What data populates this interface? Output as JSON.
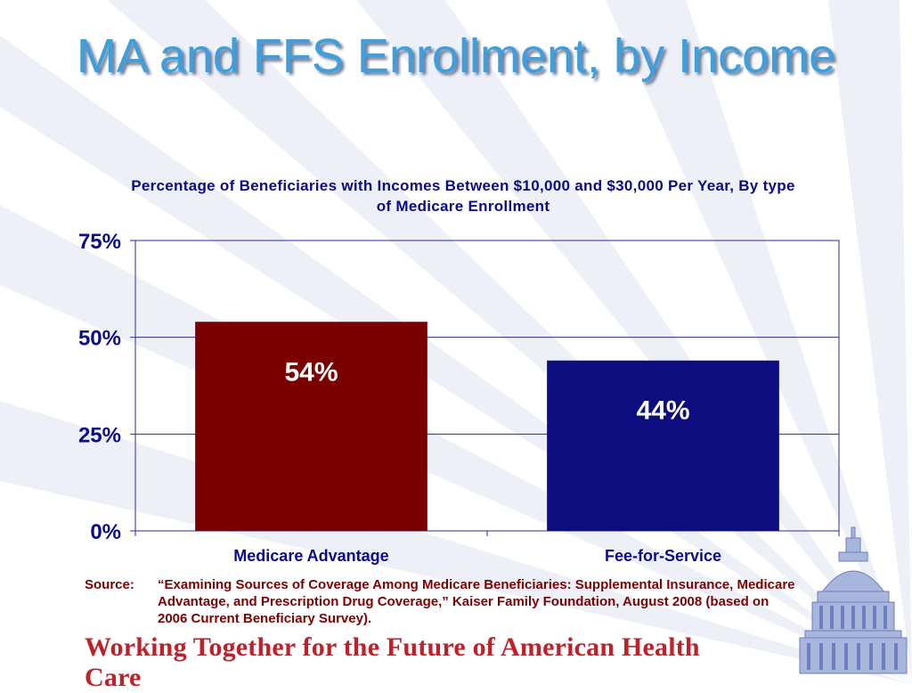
{
  "slide": {
    "title": "MA and FFS Enrollment, by Income",
    "footer_tagline": "Working Together for the Future of American Health Care"
  },
  "source": {
    "label": "Source:",
    "text": "“Examining Sources of Coverage Among Medicare Beneficiaries:  Supplemental Insurance, Medicare Advantage, and Prescription Drug Coverage,” Kaiser Family Foundation, August 2008 (based on 2006 Current Beneficiary Survey)."
  },
  "chart_data": {
    "type": "bar",
    "title": "Percentage of Beneficiaries with Incomes Between $10,000 and $30,000 Per Year, By type of Medicare Enrollment",
    "categories": [
      "Medicare Advantage",
      "Fee-for-Service"
    ],
    "values": [
      54,
      44
    ],
    "data_labels": [
      "54%",
      "44%"
    ],
    "bar_colors": [
      "#7a0000",
      "#0d0d80"
    ],
    "ylim": [
      0,
      75
    ],
    "yticks": [
      0,
      25,
      50,
      75
    ],
    "ytick_labels": [
      "0%",
      "25%",
      "50%",
      "75%"
    ],
    "xlabel": "",
    "ylabel": "",
    "grid": true,
    "legend": false
  },
  "colors": {
    "title": "#3f9fdc",
    "chart_text": "#0a0a8c",
    "source_text": "#800000",
    "tagline": "#c0202a",
    "grid": "#2a2a9a"
  },
  "icons": {
    "capitol": "capitol-dome-icon"
  }
}
